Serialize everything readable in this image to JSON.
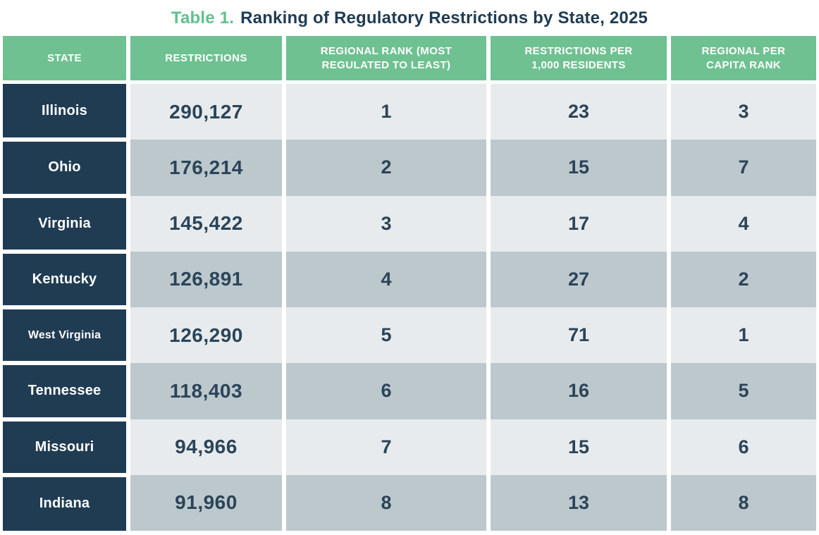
{
  "title": {
    "label": "Table 1.",
    "text": "Ranking of Regulatory Restrictions by State, 2025"
  },
  "table": {
    "columns": [
      "STATE",
      "RESTRICTIONS",
      "REGIONAL RANK (MOST REGULATED TO LEAST)",
      "RESTRICTIONS PER 1,000 RESIDENTS",
      "REGIONAL PER CAPITA RANK"
    ],
    "rows": [
      {
        "state": "Illinois",
        "restrictions": "290,127",
        "regional_rank": "1",
        "restrictions_per_1000": "23",
        "per_capita_rank": "3"
      },
      {
        "state": "Ohio",
        "restrictions": "176,214",
        "regional_rank": "2",
        "restrictions_per_1000": "15",
        "per_capita_rank": "7"
      },
      {
        "state": "Virginia",
        "restrictions": "145,422",
        "regional_rank": "3",
        "restrictions_per_1000": "17",
        "per_capita_rank": "4"
      },
      {
        "state": "Kentucky",
        "restrictions": "126,891",
        "regional_rank": "4",
        "restrictions_per_1000": "27",
        "per_capita_rank": "2"
      },
      {
        "state": "West Virginia",
        "restrictions": "126,290",
        "regional_rank": "5",
        "restrictions_per_1000": "71",
        "per_capita_rank": "1"
      },
      {
        "state": "Tennessee",
        "restrictions": "118,403",
        "regional_rank": "6",
        "restrictions_per_1000": "16",
        "per_capita_rank": "5"
      },
      {
        "state": "Missouri",
        "restrictions": "94,966",
        "regional_rank": "7",
        "restrictions_per_1000": "15",
        "per_capita_rank": "6"
      },
      {
        "state": "Indiana",
        "restrictions": "91,960",
        "regional_rank": "8",
        "restrictions_per_1000": "13",
        "per_capita_rank": "8"
      }
    ]
  },
  "colors": {
    "title_accent_green": "#5fc28e",
    "header_green": "#6fc191",
    "state_navy": "#203c53",
    "row_light": "#e7ebed",
    "row_dark": "#bdc8cd",
    "number_text": "#2b4459"
  }
}
